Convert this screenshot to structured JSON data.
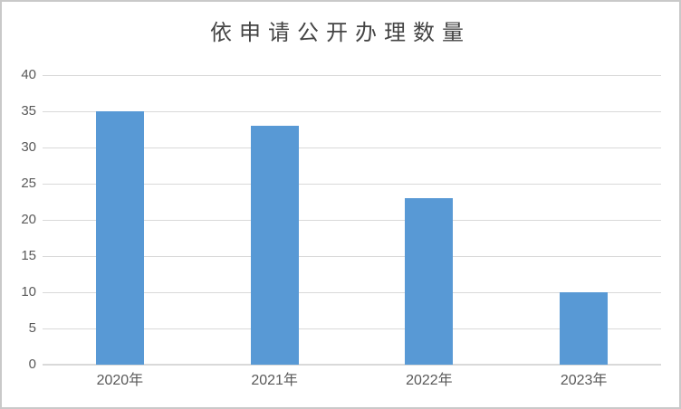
{
  "window": {
    "background": "#ffffff",
    "border_color": "#c9c9c9"
  },
  "chart_data": {
    "type": "bar",
    "title": "依申请公开办理数量",
    "categories": [
      "2020年",
      "2021年",
      "2022年",
      "2023年"
    ],
    "values": [
      35,
      33,
      23,
      10
    ],
    "xlabel": "",
    "ylabel": "",
    "ylim": [
      0,
      40
    ],
    "yticks": [
      0,
      5,
      10,
      15,
      20,
      25,
      30,
      35,
      40
    ],
    "grid": true,
    "legend_position": "none",
    "colors": {
      "bar": "#5899d5",
      "gridline": "#d9d9d9",
      "axis_line": "#d9d9d9",
      "tick_label": "#595959",
      "title": "#444444"
    }
  }
}
